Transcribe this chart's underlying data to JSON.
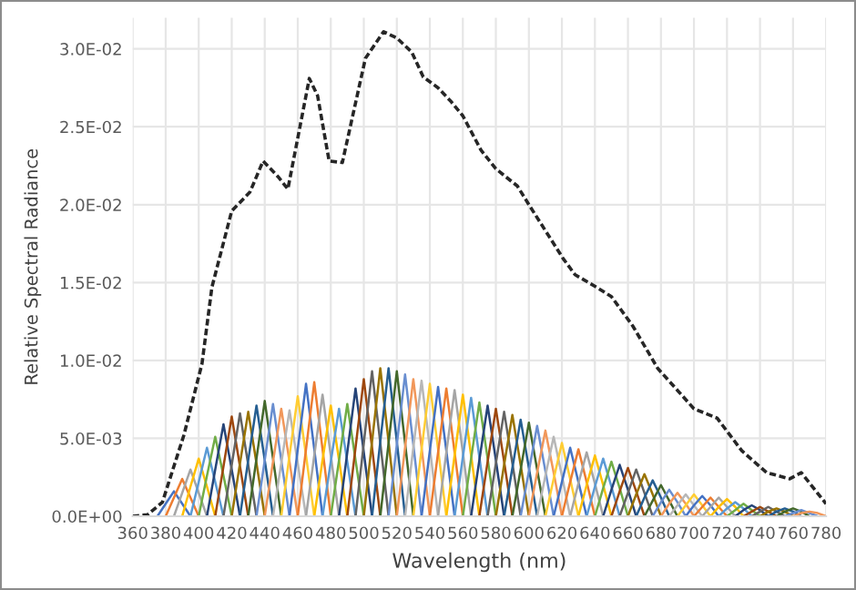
{
  "chart_data": {
    "type": "line",
    "xlabel": "Wavelength (nm)",
    "ylabel": "Relative Spectral Radiance",
    "xlim": [
      360,
      780
    ],
    "xticks": [
      360,
      380,
      400,
      420,
      440,
      460,
      480,
      500,
      520,
      540,
      560,
      580,
      600,
      620,
      640,
      660,
      680,
      700,
      720,
      740,
      760,
      780
    ],
    "ylim": [
      0,
      0.032
    ],
    "yticks": [
      {
        "value": 0,
        "label": "0.0E+00"
      },
      {
        "value": 0.005,
        "label": "5.0E-03"
      },
      {
        "value": 0.01,
        "label": "1.0E-02"
      },
      {
        "value": 0.015,
        "label": "1.5E-02"
      },
      {
        "value": 0.02,
        "label": "2.0E-02"
      },
      {
        "value": 0.025,
        "label": "2.5E-02"
      },
      {
        "value": 0.03,
        "label": "3.0E-02"
      }
    ],
    "grid": true,
    "legend": false,
    "series": [
      {
        "x": [
          375,
          380,
          385,
          390,
          395
        ],
        "values": [
          0,
          0.0008,
          0.0016,
          0.0008,
          0
        ],
        "color": "#4472c4"
      },
      {
        "x": [
          380,
          385,
          390,
          395,
          400
        ],
        "values": [
          0,
          0.0012,
          0.0024,
          0.0012,
          0
        ],
        "color": "#ed7d31"
      },
      {
        "x": [
          385,
          390,
          395,
          400,
          405
        ],
        "values": [
          0,
          0.0015,
          0.003,
          0.0015,
          0
        ],
        "color": "#a5a5a5"
      },
      {
        "x": [
          390,
          395,
          400,
          405,
          410
        ],
        "values": [
          0,
          0.0019,
          0.0037,
          0.0019,
          0
        ],
        "color": "#ffc000"
      },
      {
        "x": [
          395,
          400,
          405,
          410,
          415
        ],
        "values": [
          0,
          0.0022,
          0.0044,
          0.0022,
          0
        ],
        "color": "#5b9bd5"
      },
      {
        "x": [
          400,
          405,
          410,
          415,
          420
        ],
        "values": [
          0,
          0.0026,
          0.0051,
          0.0026,
          0
        ],
        "color": "#70ad47"
      },
      {
        "x": [
          405,
          410,
          415,
          420,
          425
        ],
        "values": [
          0,
          0.003,
          0.0059,
          0.003,
          0
        ],
        "color": "#264478"
      },
      {
        "x": [
          410,
          415,
          420,
          425,
          430
        ],
        "values": [
          0,
          0.0032,
          0.0064,
          0.0032,
          0
        ],
        "color": "#9e480e"
      },
      {
        "x": [
          415,
          420,
          425,
          430,
          435
        ],
        "values": [
          0,
          0.0033,
          0.0066,
          0.0033,
          0
        ],
        "color": "#636363"
      },
      {
        "x": [
          420,
          425,
          430,
          435,
          440
        ],
        "values": [
          0,
          0.0034,
          0.0067,
          0.0034,
          0
        ],
        "color": "#997300"
      },
      {
        "x": [
          425,
          430,
          435,
          440,
          445
        ],
        "values": [
          0,
          0.0036,
          0.0071,
          0.0036,
          0
        ],
        "color": "#255e91"
      },
      {
        "x": [
          430,
          435,
          440,
          445,
          450
        ],
        "values": [
          0,
          0.0037,
          0.0074,
          0.0037,
          0
        ],
        "color": "#43682b"
      },
      {
        "x": [
          435,
          440,
          445,
          450,
          455
        ],
        "values": [
          0,
          0.0036,
          0.0072,
          0.0036,
          0
        ],
        "color": "#698ed0"
      },
      {
        "x": [
          440,
          445,
          450,
          455,
          460
        ],
        "values": [
          0,
          0.0035,
          0.0069,
          0.0035,
          0
        ],
        "color": "#f1975a"
      },
      {
        "x": [
          445,
          450,
          455,
          460,
          465
        ],
        "values": [
          0,
          0.0034,
          0.0068,
          0.0034,
          0
        ],
        "color": "#b7b7b7"
      },
      {
        "x": [
          450,
          455,
          460,
          465,
          470
        ],
        "values": [
          0,
          0.0039,
          0.0077,
          0.0039,
          0
        ],
        "color": "#ffcd33"
      },
      {
        "x": [
          455,
          460,
          465,
          470,
          475
        ],
        "values": [
          0,
          0.0043,
          0.0085,
          0.0043,
          0
        ],
        "color": "#4472c4"
      },
      {
        "x": [
          460,
          465,
          470,
          475,
          480
        ],
        "values": [
          0,
          0.0043,
          0.0086,
          0.0043,
          0
        ],
        "color": "#ed7d31"
      },
      {
        "x": [
          465,
          470,
          475,
          480,
          485
        ],
        "values": [
          0,
          0.0039,
          0.0078,
          0.0039,
          0
        ],
        "color": "#a5a5a5"
      },
      {
        "x": [
          470,
          475,
          480,
          485,
          490
        ],
        "values": [
          0,
          0.0036,
          0.0071,
          0.0036,
          0
        ],
        "color": "#ffc000"
      },
      {
        "x": [
          475,
          480,
          485,
          490,
          495
        ],
        "values": [
          0,
          0.0035,
          0.0069,
          0.0035,
          0
        ],
        "color": "#5b9bd5"
      },
      {
        "x": [
          480,
          485,
          490,
          495,
          500
        ],
        "values": [
          0,
          0.0036,
          0.0072,
          0.0036,
          0
        ],
        "color": "#70ad47"
      },
      {
        "x": [
          485,
          490,
          495,
          500,
          505
        ],
        "values": [
          0,
          0.0041,
          0.0082,
          0.0041,
          0
        ],
        "color": "#264478"
      },
      {
        "x": [
          490,
          495,
          500,
          505,
          510
        ],
        "values": [
          0,
          0.0044,
          0.0088,
          0.0044,
          0
        ],
        "color": "#9e480e"
      },
      {
        "x": [
          495,
          500,
          505,
          510,
          515
        ],
        "values": [
          0,
          0.0047,
          0.0093,
          0.0047,
          0
        ],
        "color": "#636363"
      },
      {
        "x": [
          500,
          505,
          510,
          515,
          520
        ],
        "values": [
          0,
          0.0048,
          0.0095,
          0.0048,
          0
        ],
        "color": "#997300"
      },
      {
        "x": [
          505,
          510,
          515,
          520,
          525
        ],
        "values": [
          0,
          0.0048,
          0.0095,
          0.0048,
          0
        ],
        "color": "#255e91"
      },
      {
        "x": [
          510,
          515,
          520,
          525,
          530
        ],
        "values": [
          0,
          0.0047,
          0.0093,
          0.0047,
          0
        ],
        "color": "#43682b"
      },
      {
        "x": [
          515,
          520,
          525,
          530,
          535
        ],
        "values": [
          0,
          0.0046,
          0.0091,
          0.0046,
          0
        ],
        "color": "#698ed0"
      },
      {
        "x": [
          520,
          525,
          530,
          535,
          540
        ],
        "values": [
          0,
          0.0044,
          0.0088,
          0.0044,
          0
        ],
        "color": "#f1975a"
      },
      {
        "x": [
          525,
          530,
          535,
          540,
          545
        ],
        "values": [
          0,
          0.0044,
          0.0087,
          0.0044,
          0
        ],
        "color": "#b7b7b7"
      },
      {
        "x": [
          530,
          535,
          540,
          545,
          550
        ],
        "values": [
          0,
          0.0043,
          0.0085,
          0.0043,
          0
        ],
        "color": "#ffcd33"
      },
      {
        "x": [
          535,
          540,
          545,
          550,
          555
        ],
        "values": [
          0,
          0.0042,
          0.0083,
          0.0042,
          0
        ],
        "color": "#4472c4"
      },
      {
        "x": [
          540,
          545,
          550,
          555,
          560
        ],
        "values": [
          0,
          0.0041,
          0.0082,
          0.0041,
          0
        ],
        "color": "#ed7d31"
      },
      {
        "x": [
          545,
          550,
          555,
          560,
          565
        ],
        "values": [
          0,
          0.0041,
          0.0081,
          0.0041,
          0
        ],
        "color": "#a5a5a5"
      },
      {
        "x": [
          550,
          555,
          560,
          565,
          570
        ],
        "values": [
          0,
          0.0039,
          0.0078,
          0.0039,
          0
        ],
        "color": "#ffc000"
      },
      {
        "x": [
          555,
          560,
          565,
          570,
          575
        ],
        "values": [
          0,
          0.0038,
          0.0076,
          0.0038,
          0
        ],
        "color": "#5b9bd5"
      },
      {
        "x": [
          560,
          565,
          570,
          575,
          580
        ],
        "values": [
          0,
          0.0037,
          0.0073,
          0.0037,
          0
        ],
        "color": "#70ad47"
      },
      {
        "x": [
          565,
          570,
          575,
          580,
          585
        ],
        "values": [
          0,
          0.0036,
          0.0071,
          0.0036,
          0
        ],
        "color": "#264478"
      },
      {
        "x": [
          570,
          575,
          580,
          585,
          590
        ],
        "values": [
          0,
          0.0035,
          0.0069,
          0.0035,
          0
        ],
        "color": "#9e480e"
      },
      {
        "x": [
          575,
          580,
          585,
          590,
          595
        ],
        "values": [
          0,
          0.0034,
          0.0067,
          0.0034,
          0
        ],
        "color": "#636363"
      },
      {
        "x": [
          580,
          585,
          590,
          595,
          600
        ],
        "values": [
          0,
          0.0033,
          0.0065,
          0.0033,
          0
        ],
        "color": "#997300"
      },
      {
        "x": [
          585,
          590,
          595,
          600,
          605
        ],
        "values": [
          0,
          0.0031,
          0.0062,
          0.0031,
          0
        ],
        "color": "#255e91"
      },
      {
        "x": [
          590,
          595,
          600,
          605,
          610
        ],
        "values": [
          0,
          0.003,
          0.006,
          0.003,
          0
        ],
        "color": "#43682b"
      },
      {
        "x": [
          595,
          600,
          605,
          610,
          615
        ],
        "values": [
          0,
          0.0029,
          0.0058,
          0.0029,
          0
        ],
        "color": "#698ed0"
      },
      {
        "x": [
          600,
          605,
          610,
          615,
          620
        ],
        "values": [
          0,
          0.0028,
          0.0055,
          0.0028,
          0
        ],
        "color": "#f1975a"
      },
      {
        "x": [
          605,
          610,
          615,
          620,
          625
        ],
        "values": [
          0,
          0.0026,
          0.0051,
          0.0026,
          0
        ],
        "color": "#b7b7b7"
      },
      {
        "x": [
          610,
          615,
          620,
          625,
          630
        ],
        "values": [
          0,
          0.0024,
          0.0047,
          0.0024,
          0
        ],
        "color": "#ffcd33"
      },
      {
        "x": [
          615,
          620,
          625,
          630,
          635
        ],
        "values": [
          0,
          0.0022,
          0.0044,
          0.0022,
          0
        ],
        "color": "#4472c4"
      },
      {
        "x": [
          620,
          625,
          630,
          635,
          640
        ],
        "values": [
          0,
          0.0022,
          0.0043,
          0.0022,
          0
        ],
        "color": "#ed7d31"
      },
      {
        "x": [
          625,
          630,
          635,
          640,
          645
        ],
        "values": [
          0,
          0.0021,
          0.0041,
          0.0021,
          0
        ],
        "color": "#a5a5a5"
      },
      {
        "x": [
          630,
          635,
          640,
          645,
          650
        ],
        "values": [
          0,
          0.002,
          0.0039,
          0.002,
          0
        ],
        "color": "#ffc000"
      },
      {
        "x": [
          635,
          640,
          645,
          650,
          655
        ],
        "values": [
          0,
          0.0019,
          0.0037,
          0.0019,
          0
        ],
        "color": "#5b9bd5"
      },
      {
        "x": [
          640,
          645,
          650,
          655,
          660
        ],
        "values": [
          0,
          0.0018,
          0.0035,
          0.0018,
          0
        ],
        "color": "#70ad47"
      },
      {
        "x": [
          645,
          650,
          655,
          660,
          665
        ],
        "values": [
          0,
          0.0017,
          0.0033,
          0.0017,
          0
        ],
        "color": "#264478"
      },
      {
        "x": [
          650,
          655,
          660,
          665,
          670
        ],
        "values": [
          0,
          0.0016,
          0.0031,
          0.0016,
          0
        ],
        "color": "#9e480e"
      },
      {
        "x": [
          655,
          660,
          665,
          670,
          675
        ],
        "values": [
          0,
          0.0015,
          0.003,
          0.0015,
          0
        ],
        "color": "#636363"
      },
      {
        "x": [
          660,
          665,
          670,
          675,
          680
        ],
        "values": [
          0,
          0.0014,
          0.0027,
          0.0014,
          0
        ],
        "color": "#997300"
      },
      {
        "x": [
          665,
          670,
          675,
          680,
          685
        ],
        "values": [
          0,
          0.0012,
          0.0023,
          0.0012,
          0
        ],
        "color": "#255e91"
      },
      {
        "x": [
          670,
          675,
          680,
          685,
          690
        ],
        "values": [
          0,
          0.001,
          0.002,
          0.001,
          0
        ],
        "color": "#43682b"
      },
      {
        "x": [
          675,
          680,
          685,
          690,
          695
        ],
        "values": [
          0,
          0.0009,
          0.0017,
          0.0009,
          0
        ],
        "color": "#698ed0"
      },
      {
        "x": [
          680,
          685,
          690,
          695,
          700
        ],
        "values": [
          0,
          0.0008,
          0.0015,
          0.0008,
          0
        ],
        "color": "#f1975a"
      },
      {
        "x": [
          685,
          690,
          695,
          700,
          705
        ],
        "values": [
          0,
          0.0007,
          0.0014,
          0.0007,
          0
        ],
        "color": "#b7b7b7"
      },
      {
        "x": [
          690,
          695,
          700,
          705,
          710
        ],
        "values": [
          0,
          0.0007,
          0.0014,
          0.0007,
          0
        ],
        "color": "#ffcd33"
      },
      {
        "x": [
          695,
          700,
          705,
          710,
          715
        ],
        "values": [
          0,
          0.0007,
          0.0013,
          0.0007,
          0
        ],
        "color": "#4472c4"
      },
      {
        "x": [
          700,
          705,
          710,
          715,
          720
        ],
        "values": [
          0,
          0.0006,
          0.0012,
          0.0006,
          0
        ],
        "color": "#ed7d31"
      },
      {
        "x": [
          705,
          710,
          715,
          720,
          725
        ],
        "values": [
          0,
          0.0006,
          0.0012,
          0.0006,
          0
        ],
        "color": "#a5a5a5"
      },
      {
        "x": [
          710,
          715,
          720,
          725,
          730
        ],
        "values": [
          0,
          0.0006,
          0.0011,
          0.0006,
          0
        ],
        "color": "#ffc000"
      },
      {
        "x": [
          715,
          720,
          725,
          730,
          735
        ],
        "values": [
          0,
          0.0005,
          0.0009,
          0.0005,
          0
        ],
        "color": "#5b9bd5"
      },
      {
        "x": [
          720,
          725,
          730,
          735,
          740
        ],
        "values": [
          0,
          0.0004,
          0.0008,
          0.0004,
          0
        ],
        "color": "#70ad47"
      },
      {
        "x": [
          725,
          730,
          735,
          740,
          745
        ],
        "values": [
          0,
          0.0004,
          0.0007,
          0.0004,
          0
        ],
        "color": "#264478"
      },
      {
        "x": [
          730,
          735,
          740,
          745,
          750
        ],
        "values": [
          0,
          0.0003,
          0.0006,
          0.0003,
          0
        ],
        "color": "#9e480e"
      },
      {
        "x": [
          735,
          740,
          745,
          750,
          755
        ],
        "values": [
          0,
          0.0003,
          0.0006,
          0.0003,
          0
        ],
        "color": "#636363"
      },
      {
        "x": [
          740,
          745,
          750,
          755,
          760
        ],
        "values": [
          0,
          0.0003,
          0.0005,
          0.0003,
          0
        ],
        "color": "#997300"
      },
      {
        "x": [
          745,
          750,
          755,
          760,
          765
        ],
        "values": [
          0,
          0.0003,
          0.0005,
          0.0003,
          0
        ],
        "color": "#255e91"
      },
      {
        "x": [
          750,
          755,
          760,
          765,
          770
        ],
        "values": [
          0,
          0.0003,
          0.0005,
          0.0003,
          0
        ],
        "color": "#43682b"
      },
      {
        "x": [
          755,
          760,
          765,
          770,
          775
        ],
        "values": [
          0,
          0.0002,
          0.0004,
          0.0002,
          0
        ],
        "color": "#698ed0"
      },
      {
        "x": [
          760,
          765,
          770,
          775,
          780
        ],
        "values": [
          0,
          0.0002,
          0.0003,
          0.0002,
          0
        ],
        "color": "#f1975a"
      },
      {
        "x": [
          360,
          369,
          378,
          391,
          402,
          408,
          420,
          431,
          439,
          448,
          454,
          467,
          472,
          479,
          487,
          501,
          512,
          520,
          529,
          536,
          545,
          553,
          560,
          571,
          580,
          593,
          600,
          621,
          628,
          641,
          650,
          663,
          678,
          700,
          714,
          729,
          744,
          758,
          765,
          780
        ],
        "values": [
          0,
          0.0001,
          0.0009,
          0.0052,
          0.0098,
          0.0147,
          0.0196,
          0.0208,
          0.0228,
          0.0218,
          0.021,
          0.0281,
          0.027,
          0.0228,
          0.0227,
          0.0294,
          0.0311,
          0.0307,
          0.0298,
          0.0282,
          0.0275,
          0.0266,
          0.0257,
          0.0235,
          0.0223,
          0.0212,
          0.02,
          0.0165,
          0.0155,
          0.0147,
          0.0141,
          0.0122,
          0.0095,
          0.0069,
          0.0063,
          0.0042,
          0.0028,
          0.0024,
          0.0028,
          0.0008
        ],
        "color": "#262626",
        "line_style": "dashed"
      }
    ]
  }
}
